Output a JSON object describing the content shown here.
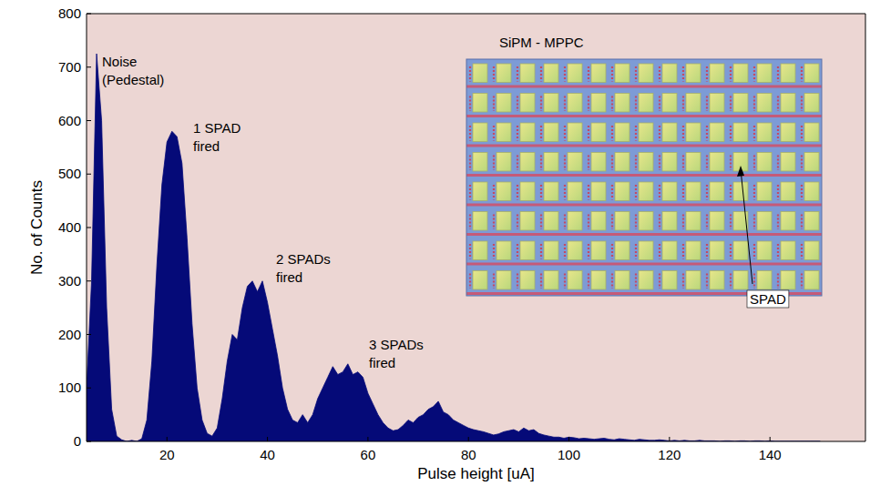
{
  "chart_data": {
    "type": "area",
    "x_label": "Pulse height [uA]",
    "y_label": "No. of Counts",
    "color": "#050a78",
    "grid": false,
    "xlim": [
      4,
      159
    ],
    "ylim": [
      0,
      800
    ],
    "xticks": [
      20,
      40,
      60,
      80,
      100,
      120,
      140
    ],
    "yticks": [
      0,
      100,
      200,
      300,
      400,
      500,
      600,
      700,
      800
    ],
    "x": [
      4,
      5,
      6,
      7,
      8,
      9,
      10,
      11,
      12,
      13,
      14,
      15,
      16,
      17,
      18,
      19,
      20,
      21,
      22,
      23,
      24,
      25,
      26,
      27,
      28,
      29,
      30,
      31,
      32,
      33,
      34,
      35,
      36,
      37,
      38,
      39,
      40,
      41,
      42,
      43,
      44,
      45,
      46,
      47,
      48,
      49,
      50,
      51,
      52,
      53,
      54,
      55,
      56,
      57,
      58,
      59,
      60,
      61,
      62,
      63,
      64,
      65,
      66,
      67,
      68,
      69,
      70,
      71,
      72,
      73,
      74,
      75,
      76,
      77,
      78,
      79,
      80,
      81,
      82,
      83,
      84,
      85,
      86,
      87,
      88,
      89,
      90,
      91,
      92,
      93,
      94,
      95,
      96,
      97,
      98,
      99,
      100,
      101,
      102,
      103,
      104,
      105,
      106,
      107,
      108,
      109,
      110,
      111,
      112,
      113,
      114,
      115,
      116,
      117,
      118,
      119,
      120,
      121,
      122,
      123,
      124,
      125,
      126,
      127,
      128,
      129,
      130,
      131,
      132,
      133,
      134,
      135,
      136,
      137,
      138,
      139,
      140,
      141,
      142,
      143,
      144,
      145,
      146,
      147,
      148,
      149,
      150
    ],
    "values": [
      100,
      300,
      725,
      600,
      250,
      60,
      10,
      3,
      0,
      2,
      0,
      5,
      40,
      150,
      330,
      480,
      560,
      580,
      570,
      520,
      380,
      220,
      100,
      40,
      15,
      10,
      25,
      80,
      150,
      200,
      190,
      250,
      290,
      300,
      280,
      300,
      260,
      210,
      160,
      100,
      60,
      40,
      35,
      50,
      35,
      50,
      80,
      100,
      120,
      140,
      125,
      130,
      145,
      125,
      130,
      120,
      90,
      70,
      50,
      35,
      25,
      20,
      22,
      30,
      40,
      35,
      45,
      50,
      60,
      65,
      75,
      55,
      50,
      40,
      35,
      30,
      25,
      22,
      20,
      18,
      15,
      12,
      14,
      18,
      20,
      22,
      18,
      25,
      20,
      22,
      15,
      12,
      10,
      8,
      8,
      6,
      8,
      7,
      5,
      6,
      5,
      4,
      5,
      6,
      4,
      3,
      5,
      4,
      3,
      2,
      4,
      3,
      2,
      2,
      3,
      2,
      1,
      2,
      1,
      2,
      1,
      1,
      2,
      1,
      1,
      1,
      0,
      1,
      1,
      0,
      1,
      1,
      0,
      1,
      1,
      0,
      1,
      0,
      0,
      0,
      0,
      0,
      0,
      0,
      0,
      0,
      0
    ],
    "annotations": [
      [
        "Noise",
        "(Pedestal)"
      ],
      [
        "1 SPAD",
        "fired"
      ],
      [
        "2 SPADs",
        "fired"
      ],
      [
        "3 SPADs",
        "fired"
      ]
    ],
    "inset_title": "SiPM - MPPC",
    "inset_label": "SPAD"
  }
}
